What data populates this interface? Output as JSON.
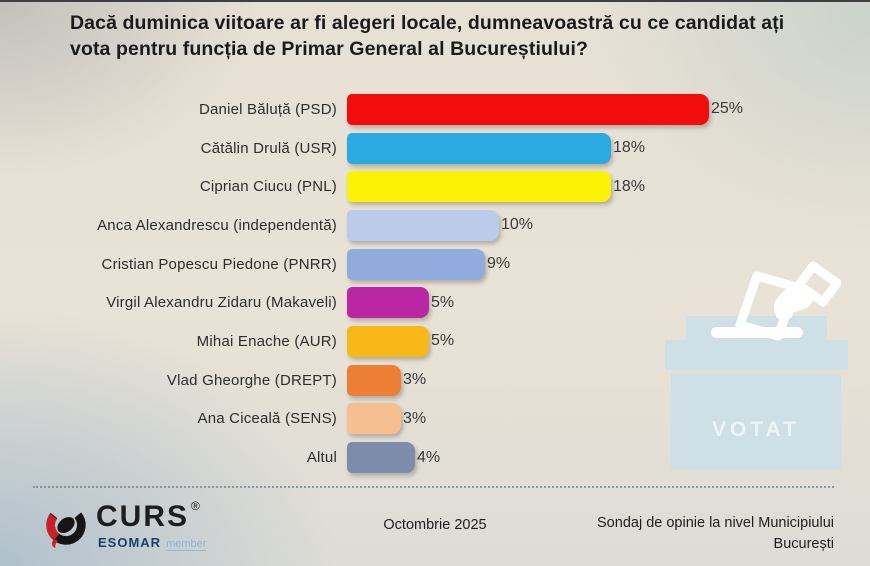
{
  "title": "Dacă duminica viitoare ar fi alegeri locale, dumneavoastră cu ce candidat ați vota pentru funcția de Primar General al Bucureștiului?",
  "chart_data": {
    "type": "bar",
    "orientation": "horizontal",
    "title": "Dacă duminica viitoare ar fi alegeri locale, dumneavoastră cu ce candidat ați vota pentru funcția de Primar General al Bucureștiului?",
    "unit": "%",
    "xlim": [
      0,
      25
    ],
    "grid": false,
    "legend": "none",
    "categories": [
      "Daniel Băluță (PSD)",
      "Cătălin Drulă (USR)",
      "Ciprian Ciucu (PNL)",
      "Anca Alexandrescu (independentă)",
      "Cristian Popescu Piedone (PNRR)",
      "Virgil Alexandru Zidaru (Makaveli)",
      "Mihai Enache (AUR)",
      "Vlad Gheorghe (DREPT)",
      "Ana Ciceală (SENS)",
      "Altul"
    ],
    "values": [
      25,
      18,
      18,
      10,
      9,
      5,
      5,
      3,
      3,
      4
    ],
    "value_labels": [
      "25%",
      "18%",
      "18%",
      "10%",
      "9%",
      "5%",
      "5%",
      "3%",
      "3%",
      "4%"
    ],
    "colors": [
      "#f20c0c",
      "#29abe2",
      "#fbf303",
      "#bccbe9",
      "#92abde",
      "#ba27a3",
      "#f8b817",
      "#ec7e35",
      "#f5bf90",
      "#7d8cab"
    ]
  },
  "illustration": {
    "ballot_box_label": "VOTAT"
  },
  "footer": {
    "logo_text": "CURS",
    "logo_registered": "®",
    "logo_sub_bold": "ESOMAR",
    "logo_sub_light": "member",
    "date": "Octombrie 2025",
    "note_line1": "Sondaj de opinie la nivel Municipiului",
    "note_line2": "București"
  }
}
